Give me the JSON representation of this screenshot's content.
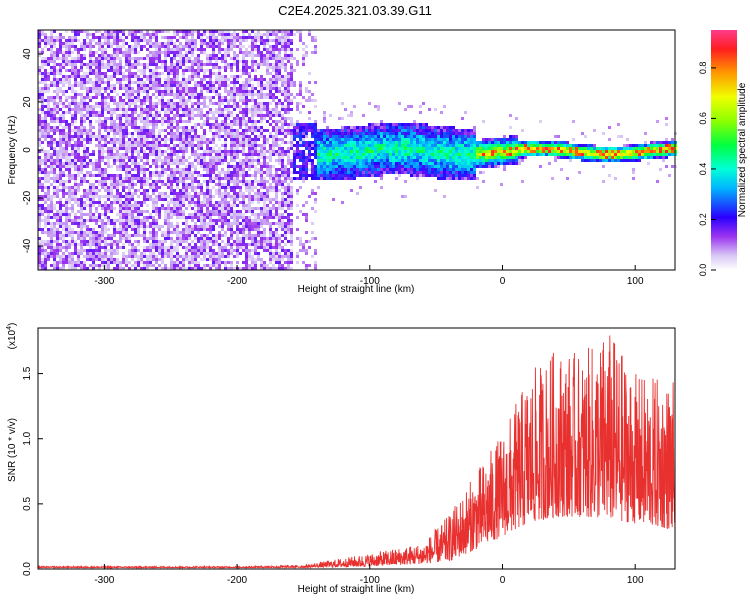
{
  "title": "C2E4.2025.321.03.39.G11",
  "chart_data": [
    {
      "type": "heatmap",
      "name": "spectrogram",
      "xlabel": "Height of straight line (km)",
      "ylabel": "Frequency (Hz)",
      "xlim": [
        -350,
        130
      ],
      "ylim": [
        -50,
        50
      ],
      "xticks": [
        -300,
        -200,
        -100,
        0,
        100
      ],
      "yticks": [
        -40,
        -20,
        0,
        20,
        40
      ],
      "xticklabels": [
        "-300",
        "-200",
        "-100",
        "0",
        "100"
      ],
      "yticklabels": [
        "-40",
        "-20",
        "0",
        "20",
        "40"
      ],
      "colorbar": {
        "label": "Normalized spectral amplitude",
        "range": [
          0.0,
          0.95
        ],
        "ticks": [
          0.0,
          0.2,
          0.4,
          0.6,
          0.8
        ],
        "ticklabels": [
          "0.0",
          "0.2",
          "0.4",
          "0.6",
          "0.8"
        ]
      },
      "regions": [
        {
          "x_range": [
            -350,
            -155
          ],
          "freq_range": [
            -50,
            50
          ],
          "amplitude": 0.1,
          "desc": "broadband noise"
        },
        {
          "x_range": [
            -155,
            -20
          ],
          "freq_center": 0,
          "freq_halfwidth": 12,
          "amplitude": 0.3
        },
        {
          "x_range": [
            -20,
            130
          ],
          "freq_center": 0,
          "freq_halfwidth": 4,
          "amplitude": 0.7
        }
      ]
    },
    {
      "type": "line",
      "name": "snr",
      "xlabel": "Height of straight line (km)",
      "ylabel": "SNR (10 * v/v)",
      "multiplier_label": "(x10",
      "multiplier_exp": "4",
      "color": "#e8302f",
      "xlim": [
        -350,
        130
      ],
      "ylim": [
        0,
        1.85
      ],
      "xticks": [
        -300,
        -200,
        -100,
        0,
        100
      ],
      "yticks": [
        0.0,
        0.5,
        1.0,
        1.5
      ],
      "xticklabels": [
        "-300",
        "-200",
        "-100",
        "0",
        "100"
      ],
      "yticklabels": [
        "0.0",
        "0.5",
        "1.0",
        "1.5"
      ],
      "envelope": {
        "x": [
          -350,
          -200,
          -150,
          -100,
          -60,
          -40,
          -20,
          0,
          20,
          40,
          60,
          80,
          100,
          130
        ],
        "baseline": [
          0.01,
          0.01,
          0.01,
          0.02,
          0.04,
          0.06,
          0.15,
          0.25,
          0.35,
          0.4,
          0.4,
          0.38,
          0.35,
          0.3
        ],
        "peak": [
          0.02,
          0.02,
          0.03,
          0.12,
          0.2,
          0.42,
          0.75,
          1.05,
          1.5,
          1.7,
          1.65,
          1.85,
          1.5,
          1.45
        ]
      }
    }
  ]
}
